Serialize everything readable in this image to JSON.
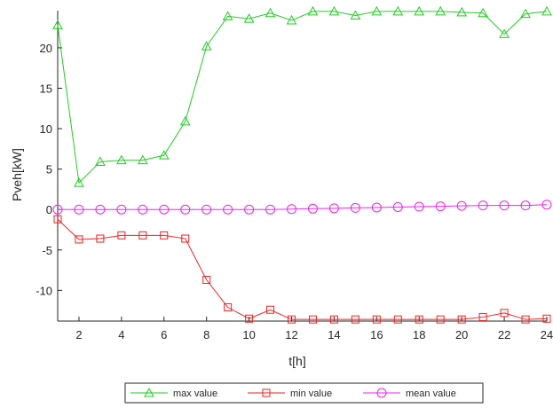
{
  "chart_data": {
    "type": "line",
    "title": "",
    "xlabel": "t[h]",
    "ylabel": "Pveh[kW]",
    "xlim": [
      1,
      24
    ],
    "ylim": [
      -13.8,
      24.6
    ],
    "xticks": [
      2,
      4,
      6,
      8,
      10,
      12,
      14,
      16,
      18,
      20,
      22,
      24
    ],
    "yticks": [
      -10,
      -5,
      0,
      5,
      10,
      15,
      20
    ],
    "grid": false,
    "legend_position": "bottom-center",
    "x": [
      1,
      2,
      3,
      4,
      5,
      6,
      7,
      8,
      9,
      10,
      11,
      12,
      13,
      14,
      15,
      16,
      17,
      18,
      19,
      20,
      21,
      22,
      23,
      24
    ],
    "series": [
      {
        "name": "max value",
        "color": "#22cc22",
        "marker": "triangle",
        "values": [
          22.8,
          3.3,
          5.9,
          6.1,
          6.1,
          6.7,
          10.9,
          20.2,
          23.9,
          23.6,
          24.3,
          23.4,
          24.5,
          24.5,
          24.0,
          24.5,
          24.5,
          24.5,
          24.5,
          24.4,
          24.3,
          21.7,
          24.2,
          24.5
        ]
      },
      {
        "name": "min value",
        "color": "#ee2222",
        "marker": "square",
        "values": [
          -1.2,
          -3.7,
          -3.6,
          -3.2,
          -3.2,
          -3.2,
          -3.6,
          -8.7,
          -12.1,
          -13.5,
          -12.4,
          -13.6,
          -13.6,
          -13.6,
          -13.6,
          -13.6,
          -13.6,
          -13.6,
          -13.6,
          -13.6,
          -13.3,
          -12.8,
          -13.6,
          -13.5
        ]
      },
      {
        "name": "mean value",
        "color": "#ee22ee",
        "marker": "circle",
        "values": [
          0.0,
          0.0,
          0.0,
          0.0,
          0.0,
          0.0,
          0.0,
          0.0,
          0.0,
          0.0,
          0.0,
          0.05,
          0.1,
          0.15,
          0.2,
          0.25,
          0.3,
          0.35,
          0.4,
          0.45,
          0.5,
          0.5,
          0.5,
          0.6
        ]
      }
    ]
  }
}
